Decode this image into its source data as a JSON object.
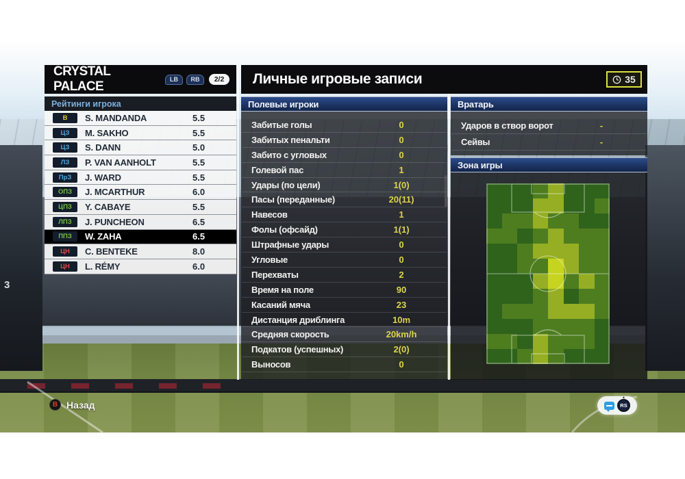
{
  "scene": {
    "stand_sign": "3"
  },
  "team_panel": {
    "team_name": "CRYSTAL PALACE",
    "prev_button_label": "LB",
    "next_button_label": "RB",
    "page_indicator": "2/2",
    "ratings_header": "Рейтинги игрока",
    "players": [
      {
        "pos": "В",
        "pos_color": "#dec33c",
        "name": "S. MANDANDA",
        "rating": "5.5",
        "selected": false
      },
      {
        "pos": "ЦЗ",
        "pos_color": "#4aa8e8",
        "name": "M. SAKHO",
        "rating": "5.5",
        "selected": false
      },
      {
        "pos": "ЦЗ",
        "pos_color": "#4aa8e8",
        "name": "S. DANN",
        "rating": "5.0",
        "selected": false
      },
      {
        "pos": "ЛЗ",
        "pos_color": "#4aa8e8",
        "name": "P. VAN AANHOLT",
        "rating": "5.5",
        "selected": false
      },
      {
        "pos": "ПрЗ",
        "pos_color": "#4aa8e8",
        "name": "J. WARD",
        "rating": "5.5",
        "selected": false
      },
      {
        "pos": "ОПЗ",
        "pos_color": "#74c043",
        "name": "J. MCARTHUR",
        "rating": "6.0",
        "selected": false
      },
      {
        "pos": "ЦПЗ",
        "pos_color": "#74c043",
        "name": "Y. CABAYE",
        "rating": "5.5",
        "selected": false
      },
      {
        "pos": "ЛПЗ",
        "pos_color": "#74c043",
        "name": "J. PUNCHEON",
        "rating": "6.5",
        "selected": false
      },
      {
        "pos": "ППЗ",
        "pos_color": "#74c043",
        "name": "W. ZAHA",
        "rating": "6.5",
        "selected": true
      },
      {
        "pos": "ЦН",
        "pos_color": "#da4a3f",
        "name": "C. BENTEKE",
        "rating": "8.0",
        "selected": false
      },
      {
        "pos": "ЦН",
        "pos_color": "#da4a3f",
        "name": "L. RÉMY",
        "rating": "6.0",
        "selected": false
      }
    ]
  },
  "main_panel": {
    "title": "Личные игровые записи",
    "timer_value": "35",
    "field_players_header": "Полевые игроки",
    "stats": [
      {
        "label": "Забитые голы",
        "value": "0"
      },
      {
        "label": "Забитых пенальти",
        "value": "0"
      },
      {
        "label": "Забито с угловых",
        "value": "0"
      },
      {
        "label": "Голевой пас",
        "value": "1"
      },
      {
        "label": "Удары (по цели)",
        "value": "1(0)"
      },
      {
        "label": "Пасы (переданные)",
        "value": "20(11)"
      },
      {
        "label": "Навесов",
        "value": "1"
      },
      {
        "label": "Фолы (офсайд)",
        "value": "1(1)"
      },
      {
        "label": "Штрафные удары",
        "value": "0"
      },
      {
        "label": "Угловые",
        "value": "0"
      },
      {
        "label": "Перехваты",
        "value": "2"
      },
      {
        "label": "Время на поле",
        "value": "90"
      },
      {
        "label": "Касаний мяча",
        "value": "23"
      },
      {
        "label": "Дистанция дриблинга",
        "value": "10m"
      },
      {
        "label": "Средняя скорость",
        "value": "20km/h"
      },
      {
        "label": "Подкатов (успешных)",
        "value": "2(0)"
      },
      {
        "label": "Выносов",
        "value": "0"
      }
    ]
  },
  "gk_panel": {
    "header": "Вратарь",
    "stats": [
      {
        "label": "Ударов в створ ворот",
        "value": "-"
      },
      {
        "label": "Сейвы",
        "value": "-"
      }
    ]
  },
  "zone_panel": {
    "header": "Зона игры"
  },
  "chart_data": {
    "type": "heatmap",
    "title": "Зона игры",
    "rows": 12,
    "cols": 8,
    "legend": "none",
    "values": [
      [
        1,
        1,
        1,
        2,
        3,
        1,
        1,
        1
      ],
      [
        1,
        1,
        1,
        3,
        3,
        1,
        1,
        2
      ],
      [
        1,
        2,
        2,
        3,
        2,
        2,
        1,
        1
      ],
      [
        2,
        2,
        1,
        2,
        3,
        2,
        2,
        2
      ],
      [
        1,
        1,
        2,
        3,
        3,
        3,
        2,
        2
      ],
      [
        1,
        1,
        2,
        2,
        4,
        3,
        2,
        2
      ],
      [
        1,
        1,
        1,
        3,
        4,
        2,
        3,
        2
      ],
      [
        1,
        1,
        1,
        2,
        3,
        1,
        2,
        2
      ],
      [
        1,
        2,
        2,
        2,
        3,
        3,
        3,
        2
      ],
      [
        1,
        1,
        1,
        2,
        2,
        2,
        2,
        1
      ],
      [
        2,
        2,
        1,
        3,
        2,
        2,
        2,
        1
      ],
      [
        1,
        1,
        2,
        3,
        2,
        1,
        1,
        1
      ]
    ],
    "palette": {
      "0": "#24511a",
      "1": "#2f631c",
      "2": "#4e7d20",
      "3": "#95ae24",
      "4": "#c6d420"
    }
  },
  "footer": {
    "back_button": "B",
    "back_label": "Назад",
    "right_stick_label": "RS"
  },
  "colors": {
    "section_bar_blue": "#1d3464",
    "value_yellow": "#ddd44e",
    "selected_row": "#000000",
    "timer_border": "#dde23e"
  }
}
